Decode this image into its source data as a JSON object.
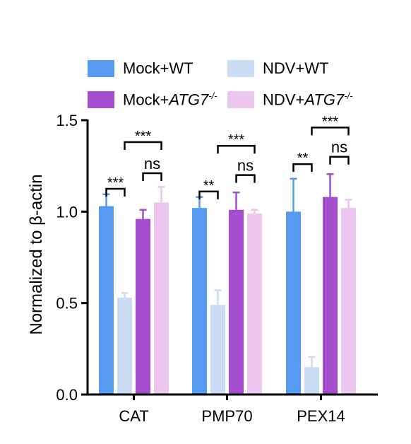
{
  "legend": {
    "items": [
      {
        "text": "Mock+WT",
        "gene": "",
        "sup": "",
        "color": "#559af0"
      },
      {
        "text": "NDV+WT",
        "gene": "",
        "sup": "",
        "color": "#c9dcf3"
      },
      {
        "text": "Mock+",
        "gene": "ATG7",
        "sup": "-/-",
        "color": "#a44ecf"
      },
      {
        "text": "NDV+",
        "gene": "ATG7",
        "sup": "-/-",
        "color": "#ecc6ee"
      }
    ]
  },
  "chart_data": {
    "type": "bar",
    "ylabel": "Normalized to β-actin",
    "xlabel": "",
    "ylim": [
      0,
      1.5
    ],
    "yticks": [
      "0.0",
      "0.5",
      "1.0",
      "1.5"
    ],
    "yticks_values": [
      0,
      0.5,
      1.0,
      1.5
    ],
    "categories": [
      "CAT",
      "PMP70",
      "PEX14"
    ],
    "series": [
      {
        "name": "Mock+WT",
        "values": [
          1.03,
          1.02,
          1.0
        ],
        "errors": [
          0.065,
          0.06,
          0.18
        ],
        "color": "#559af0"
      },
      {
        "name": "NDV+WT",
        "values": [
          0.53,
          0.49,
          0.15
        ],
        "errors": [
          0.025,
          0.08,
          0.055
        ],
        "color": "#c9dcf3"
      },
      {
        "name": "Mock+ATG7-/-",
        "values": [
          0.96,
          1.01,
          1.08
        ],
        "errors": [
          0.05,
          0.095,
          0.125
        ],
        "color": "#a44ecf"
      },
      {
        "name": "NDV+ATG7-/-",
        "values": [
          1.05,
          0.99,
          1.02
        ],
        "errors": [
          0.085,
          0.02,
          0.045
        ],
        "color": "#ecc6ee"
      }
    ],
    "significance": [
      {
        "category": "CAT",
        "from": 0,
        "to": 1,
        "label": "***",
        "level": 1.125
      },
      {
        "category": "CAT",
        "from": 2,
        "to": 3,
        "label": "ns",
        "level": 1.21
      },
      {
        "category": "CAT",
        "from": 1,
        "to": 3,
        "label": "***",
        "level": 1.38
      },
      {
        "category": "PMP70",
        "from": 0,
        "to": 1,
        "label": "**",
        "level": 1.11
      },
      {
        "category": "PMP70",
        "from": 2,
        "to": 3,
        "label": "ns",
        "level": 1.2
      },
      {
        "category": "PMP70",
        "from": 1,
        "to": 3,
        "label": "***",
        "level": 1.36
      },
      {
        "category": "PEX14",
        "from": 0,
        "to": 1,
        "label": "**",
        "level": 1.26
      },
      {
        "category": "PEX14",
        "from": 2,
        "to": 3,
        "label": "ns",
        "level": 1.3
      },
      {
        "category": "PEX14",
        "from": 1,
        "to": 3,
        "label": "***",
        "level": 1.46
      }
    ]
  }
}
